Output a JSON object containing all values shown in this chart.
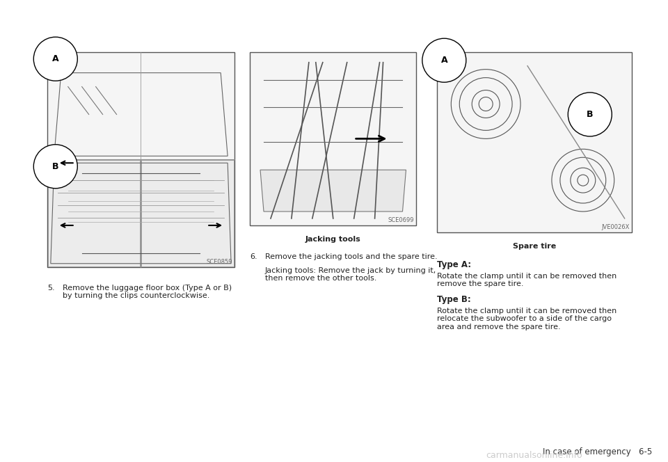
{
  "bg_color": "#ffffff",
  "page_width": 9.6,
  "page_height": 6.64,
  "watermark_text": "carmanualsonline.info",
  "watermark_color": "#cccccc",
  "footer_text": "In case of emergency   6-5",
  "footer_color": "#333333",
  "left_image_label": "SCE0859",
  "left_caption_num": "5.",
  "left_caption_text": "Remove the luggage floor box (Type A or B)\nby turning the clips counterclockwise.",
  "mid_image_label": "SCE0699",
  "mid_caption": "Jacking tools",
  "mid_step_num": "6.",
  "mid_step_text1": "Remove the jacking tools and the spare tire.",
  "mid_step_text2": "Jacking tools: Remove the jack by turning it,\nthen remove the other tools.",
  "right_image_label": "JVE0026X",
  "right_caption": "Spare tire",
  "right_typeA_head": "Type A:",
  "right_typeA_text": "Rotate the clamp until it can be removed then\nremove the spare tire.",
  "right_typeB_head": "Type B:",
  "right_typeB_text": "Rotate the clamp until it can be removed then\nrelocate the subwoofer to a side of the cargo\narea and remove the spare tire.",
  "box_line_color": "#555555",
  "text_color": "#222222",
  "label_color": "#666666",
  "image_bg": "#f5f5f5"
}
